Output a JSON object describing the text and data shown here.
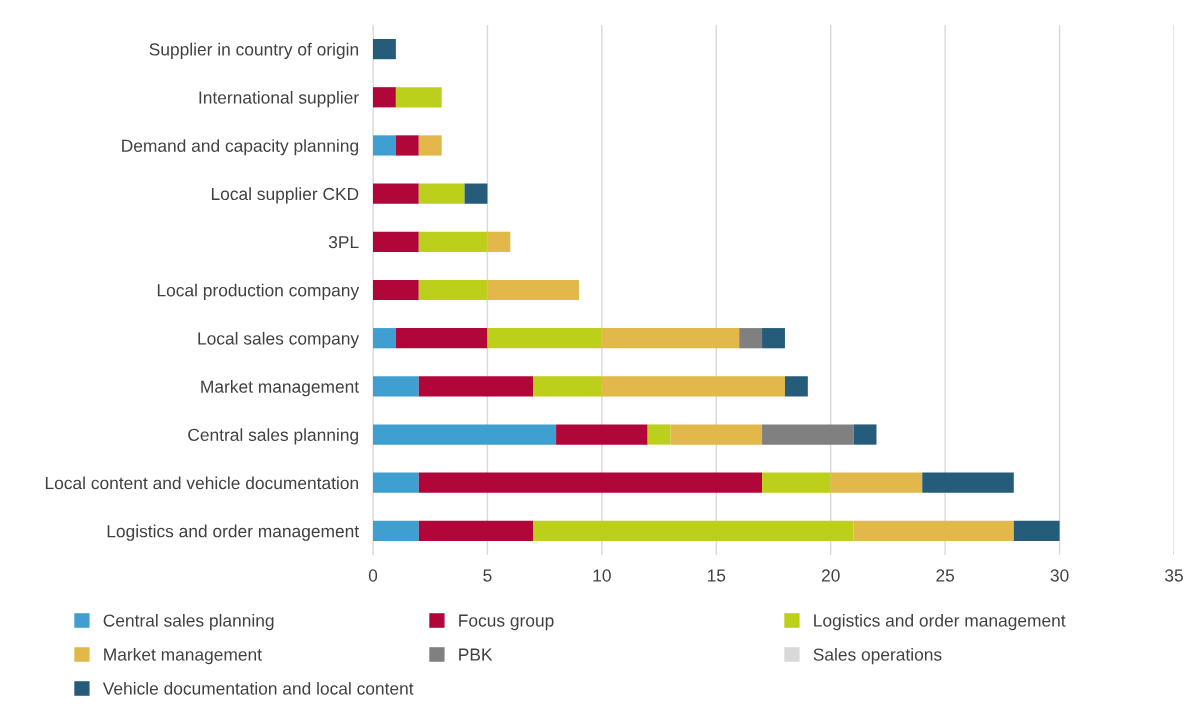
{
  "chart_data": {
    "type": "bar",
    "orientation": "horizontal",
    "stacked": true,
    "categories": [
      "Supplier in country of origin",
      "International supplier",
      "Demand and capacity planning",
      "Local supplier CKD",
      "3PL",
      "Local production company",
      "Local sales company",
      "Market management",
      "Central sales planning",
      "Local content and vehicle documentation",
      "Logistics and order management"
    ],
    "series": [
      {
        "name": "Central sales planning",
        "color": "#3f9fd0",
        "values": [
          null,
          null,
          1,
          null,
          null,
          null,
          1,
          2,
          8,
          2,
          2
        ]
      },
      {
        "name": "Focus group",
        "color": "#b0063a",
        "values": [
          null,
          1,
          1,
          2,
          2,
          2,
          4,
          5,
          4,
          15,
          5
        ]
      },
      {
        "name": "Logistics and order management",
        "color": "#bccf1b",
        "values": [
          null,
          2,
          null,
          2,
          3,
          3,
          5,
          3,
          1,
          3,
          14
        ]
      },
      {
        "name": "Market management",
        "color": "#e3b84a",
        "values": [
          null,
          null,
          1,
          null,
          1,
          4,
          6,
          8,
          4,
          4,
          7
        ]
      },
      {
        "name": "PBK",
        "color": "#808080",
        "values": [
          null,
          null,
          null,
          null,
          null,
          null,
          1,
          null,
          4,
          null,
          null
        ]
      },
      {
        "name": "Sales operations",
        "color": "#d9d9d9",
        "values": [
          null,
          null,
          null,
          null,
          null,
          null,
          null,
          null,
          null,
          null,
          null
        ]
      },
      {
        "name": "Vehicle documentation and local content",
        "color": "#245c7a",
        "values": [
          1,
          null,
          null,
          1,
          null,
          null,
          1,
          1,
          1,
          4,
          2
        ]
      }
    ],
    "xlim": [
      0,
      35
    ],
    "xticks": [
      0,
      5,
      10,
      15,
      20,
      25,
      30,
      35
    ],
    "grid": "x",
    "legend": "bottom"
  }
}
